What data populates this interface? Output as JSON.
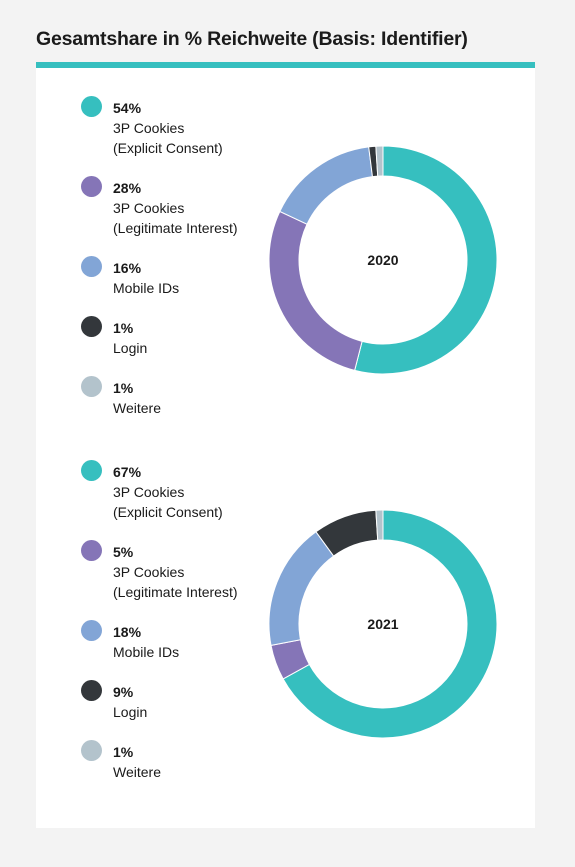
{
  "title": "Gesamtshare in % Reichweite (Basis: Identifier)",
  "colors": {
    "accent": "#36bfbf",
    "explicit_consent": "#36bfbf",
    "legitimate_interest": "#8575b7",
    "mobile_ids": "#82a5d6",
    "login": "#33373b",
    "weitere": "#b3c3cc",
    "background": "#f3f3f3",
    "card": "#ffffff"
  },
  "chart_data": [
    {
      "type": "pie",
      "donut": true,
      "center_label": "2020",
      "title": "",
      "slices": [
        {
          "pct_label": "54%",
          "label_line1": "3P Cookies",
          "label_line2": "(Explicit Consent)",
          "value": 54,
          "color": "#36bfbf"
        },
        {
          "pct_label": "28%",
          "label_line1": "3P Cookies",
          "label_line2": "(Legitimate Interest)",
          "value": 28,
          "color": "#8575b7"
        },
        {
          "pct_label": "16%",
          "label_line1": "Mobile IDs",
          "label_line2": "",
          "value": 16,
          "color": "#82a5d6"
        },
        {
          "pct_label": "1%",
          "label_line1": "Login",
          "label_line2": "",
          "value": 1,
          "color": "#33373b"
        },
        {
          "pct_label": "1%",
          "label_line1": "Weitere",
          "label_line2": "",
          "value": 1,
          "color": "#b3c3cc"
        }
      ],
      "legend_placement": "left"
    },
    {
      "type": "pie",
      "donut": true,
      "center_label": "2021",
      "title": "",
      "slices": [
        {
          "pct_label": "67%",
          "label_line1": "3P Cookies",
          "label_line2": "(Explicit Consent)",
          "value": 67,
          "color": "#36bfbf"
        },
        {
          "pct_label": "5%",
          "label_line1": "3P Cookies",
          "label_line2": "(Legitimate Interest)",
          "value": 5,
          "color": "#8575b7"
        },
        {
          "pct_label": "18%",
          "label_line1": "Mobile IDs",
          "label_line2": "",
          "value": 18,
          "color": "#82a5d6"
        },
        {
          "pct_label": "9%",
          "label_line1": "Login",
          "label_line2": "",
          "value": 9,
          "color": "#33373b"
        },
        {
          "pct_label": "1%",
          "label_line1": "Weitere",
          "label_line2": "",
          "value": 1,
          "color": "#b3c3cc"
        }
      ],
      "legend_placement": "left"
    }
  ]
}
